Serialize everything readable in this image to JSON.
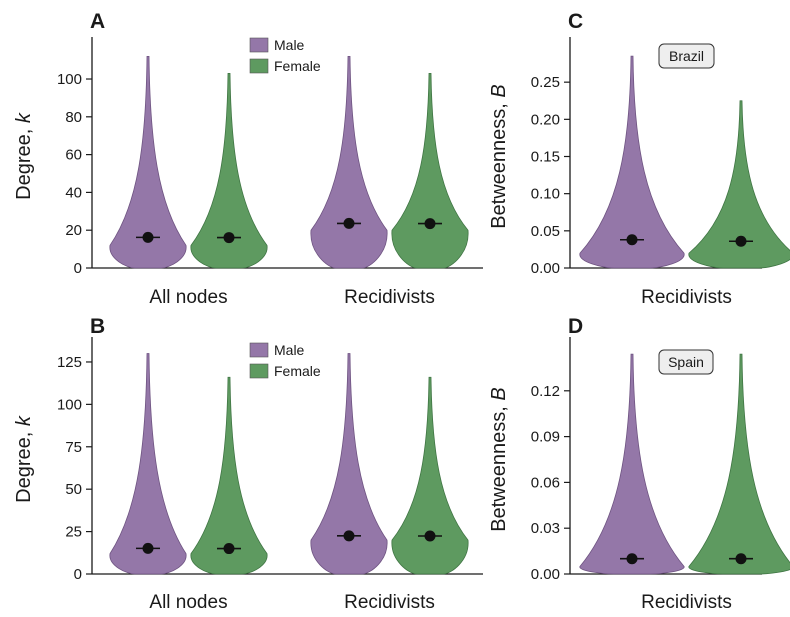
{
  "colors": {
    "male": "#9477a8",
    "female": "#5e9a60",
    "male_edge": "#6e5381",
    "female_edge": "#3f7543",
    "axis": "#1a1a1a"
  },
  "legend": {
    "items": [
      {
        "name": "Male",
        "color": "#9477a8"
      },
      {
        "name": "Female",
        "color": "#5e9a60"
      }
    ]
  },
  "chart_data": [
    {
      "panel": "A",
      "type": "violin",
      "ylabel": "Degree, k",
      "ylim": [
        0,
        118
      ],
      "yticks": [
        0,
        20,
        40,
        60,
        80,
        100
      ],
      "categories": [
        "All nodes",
        "Recidivists"
      ],
      "legend": "top-center",
      "series": [
        {
          "name": "Male",
          "means": [
            16.2,
            23.6
          ],
          "maxima": [
            112,
            112
          ],
          "mode": [
            12,
            20
          ]
        },
        {
          "name": "Female",
          "means": [
            16.1,
            23.5
          ],
          "maxima": [
            103,
            103
          ],
          "mode": [
            12,
            20
          ]
        }
      ]
    },
    {
      "panel": "B",
      "type": "violin",
      "ylabel": "Degree, k",
      "ylim": [
        0,
        135
      ],
      "yticks": [
        0,
        25,
        50,
        75,
        100,
        125
      ],
      "categories": [
        "All nodes",
        "Recidivists"
      ],
      "legend": "top-center",
      "series": [
        {
          "name": "Male",
          "means": [
            15.1,
            22.5
          ],
          "maxima": [
            130,
            130
          ],
          "mode": [
            12,
            20
          ]
        },
        {
          "name": "Female",
          "means": [
            15.0,
            22.4
          ],
          "maxima": [
            116,
            116
          ],
          "mode": [
            12,
            20
          ]
        }
      ]
    },
    {
      "panel": "C",
      "type": "violin",
      "ylabel": "Betweenness, B",
      "ylim": [
        0,
        0.3
      ],
      "yticks": [
        0.0,
        0.05,
        0.1,
        0.15,
        0.2,
        0.25
      ],
      "tick_format": "0.00",
      "categories": [
        "Recidivists"
      ],
      "region": "Brazil",
      "series": [
        {
          "name": "Male",
          "means": [
            0.038
          ],
          "maxima": [
            0.285
          ],
          "mode": [
            0.02
          ]
        },
        {
          "name": "Female",
          "means": [
            0.036
          ],
          "maxima": [
            0.225
          ],
          "mode": [
            0.02
          ]
        }
      ]
    },
    {
      "panel": "D",
      "type": "violin",
      "ylabel": "Betweenness, B",
      "ylim": [
        0,
        0.15
      ],
      "yticks": [
        0.0,
        0.03,
        0.06,
        0.09,
        0.12
      ],
      "tick_format": "0.00",
      "categories": [
        "Recidivists"
      ],
      "region": "Spain",
      "series": [
        {
          "name": "Male",
          "means": [
            0.01
          ],
          "maxima": [
            0.144
          ],
          "mode": [
            0.005
          ]
        },
        {
          "name": "Female",
          "means": [
            0.01
          ],
          "maxima": [
            0.144
          ],
          "mode": [
            0.005
          ]
        }
      ]
    }
  ]
}
